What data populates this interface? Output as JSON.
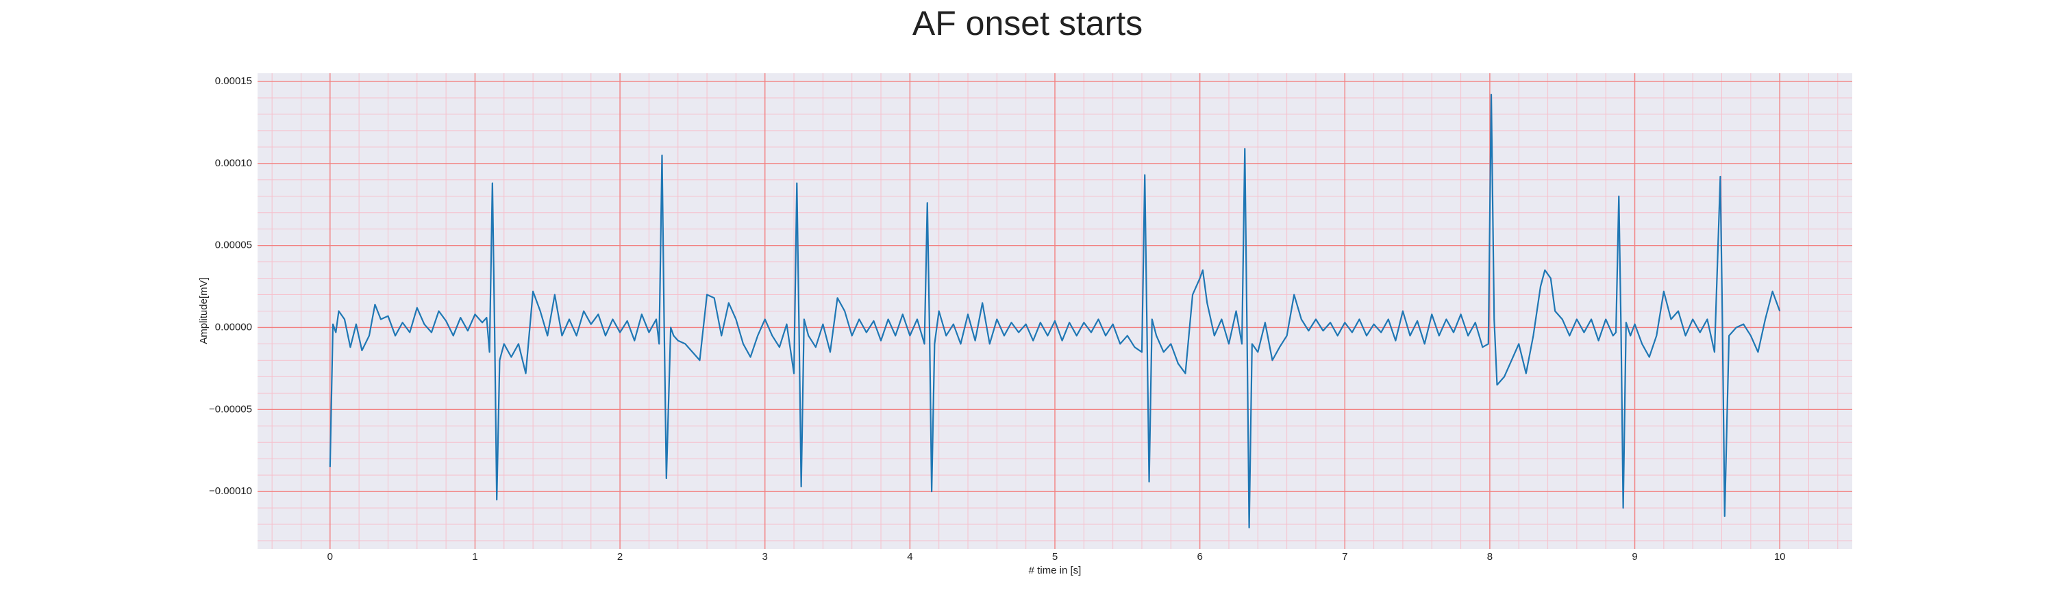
{
  "chart_data": {
    "type": "line",
    "title": "AF onset starts",
    "xlabel": "# time in [s]",
    "ylabel": "Amplitude[mV]",
    "color": "#1f77b4",
    "grid": true,
    "xlim": [
      -0.5,
      10.5
    ],
    "xticks": [
      0,
      1,
      2,
      3,
      4,
      5,
      6,
      7,
      8,
      9,
      10
    ],
    "ylim": [
      -0.000135,
      0.000155
    ],
    "yticks": [
      {
        "value": -0.0001,
        "label": "−0.00010"
      },
      {
        "value": -5e-05,
        "label": "−0.00005"
      },
      {
        "value": 0,
        "label": "0.00000"
      },
      {
        "value": 5e-05,
        "label": "0.00005"
      },
      {
        "value": 0.0001,
        "label": "0.00010"
      },
      {
        "value": 0.00015,
        "label": "0.00015"
      }
    ],
    "x": [
      0,
      0.02,
      0.04,
      0.06,
      0.1,
      0.14,
      0.18,
      0.22,
      0.27,
      0.31,
      0.35,
      0.4,
      0.45,
      0.5,
      0.55,
      0.6,
      0.65,
      0.7,
      0.75,
      0.8,
      0.85,
      0.9,
      0.95,
      1.0,
      1.05,
      1.08,
      1.1,
      1.12,
      1.135,
      1.15,
      1.17,
      1.2,
      1.25,
      1.3,
      1.35,
      1.4,
      1.45,
      1.5,
      1.55,
      1.6,
      1.65,
      1.7,
      1.75,
      1.8,
      1.85,
      1.9,
      1.95,
      2.0,
      2.05,
      2.1,
      2.15,
      2.2,
      2.25,
      2.27,
      2.29,
      2.305,
      2.32,
      2.35,
      2.37,
      2.4,
      2.45,
      2.5,
      2.55,
      2.6,
      2.65,
      2.7,
      2.75,
      2.8,
      2.85,
      2.9,
      2.95,
      3.0,
      3.05,
      3.1,
      3.15,
      3.2,
      3.22,
      3.235,
      3.25,
      3.27,
      3.3,
      3.35,
      3.4,
      3.45,
      3.5,
      3.55,
      3.6,
      3.65,
      3.7,
      3.75,
      3.8,
      3.85,
      3.9,
      3.95,
      4.0,
      4.05,
      4.1,
      4.12,
      4.135,
      4.15,
      4.17,
      4.2,
      4.25,
      4.3,
      4.35,
      4.4,
      4.45,
      4.5,
      4.55,
      4.6,
      4.65,
      4.7,
      4.75,
      4.8,
      4.85,
      4.9,
      4.95,
      5.0,
      5.05,
      5.1,
      5.15,
      5.2,
      5.25,
      5.3,
      5.35,
      5.4,
      5.45,
      5.5,
      5.55,
      5.6,
      5.62,
      5.635,
      5.65,
      5.67,
      5.7,
      5.75,
      5.8,
      5.85,
      5.9,
      5.95,
      6.0,
      6.02,
      6.05,
      6.1,
      6.15,
      6.2,
      6.25,
      6.29,
      6.31,
      6.325,
      6.34,
      6.36,
      6.4,
      6.45,
      6.5,
      6.55,
      6.6,
      6.65,
      6.7,
      6.75,
      6.8,
      6.85,
      6.9,
      6.95,
      7.0,
      7.05,
      7.1,
      7.15,
      7.2,
      7.25,
      7.3,
      7.35,
      7.4,
      7.45,
      7.5,
      7.55,
      7.6,
      7.65,
      7.7,
      7.75,
      7.8,
      7.85,
      7.9,
      7.95,
      7.99,
      8.01,
      8.03,
      8.05,
      8.1,
      8.15,
      8.2,
      8.25,
      8.3,
      8.35,
      8.38,
      8.42,
      8.45,
      8.5,
      8.55,
      8.6,
      8.65,
      8.7,
      8.75,
      8.8,
      8.85,
      8.87,
      8.89,
      8.905,
      8.92,
      8.94,
      8.97,
      9.0,
      9.05,
      9.1,
      9.15,
      9.2,
      9.25,
      9.3,
      9.35,
      9.4,
      9.45,
      9.5,
      9.55,
      9.59,
      9.605,
      9.62,
      9.65,
      9.7,
      9.75,
      9.8,
      9.85,
      9.9,
      9.95,
      10.0
    ],
    "values": [
      -8.5e-05,
      2e-06,
      -3e-06,
      1e-05,
      5e-06,
      -1.2e-05,
      2e-06,
      -1.4e-05,
      -5e-06,
      1.4e-05,
      5e-06,
      7e-06,
      -5e-06,
      3e-06,
      -3e-06,
      1.2e-05,
      2e-06,
      -3e-06,
      1e-05,
      4e-06,
      -5e-06,
      6e-06,
      -2e-06,
      8e-06,
      3e-06,
      6e-06,
      -1.5e-05,
      8.8e-05,
      0,
      -0.000105,
      -2e-05,
      -1e-05,
      -1.8e-05,
      -1e-05,
      -2.8e-05,
      2.2e-05,
      1e-05,
      -5e-06,
      2e-05,
      -5e-06,
      5e-06,
      -5e-06,
      1e-05,
      2e-06,
      8e-06,
      -5e-06,
      5e-06,
      -3e-06,
      4e-06,
      -8e-06,
      8e-06,
      -3e-06,
      5e-06,
      -1e-05,
      0.000105,
      0,
      -9.2e-05,
      0,
      -5e-06,
      -8e-06,
      -1e-05,
      -1.5e-05,
      -2e-05,
      2e-05,
      1.8e-05,
      -5e-06,
      1.5e-05,
      5e-06,
      -1e-05,
      -1.8e-05,
      -5e-06,
      5e-06,
      -5e-06,
      -1.2e-05,
      2e-06,
      -2.8e-05,
      8.8e-05,
      0,
      -9.7e-05,
      5e-06,
      -5e-06,
      -1.2e-05,
      2e-06,
      -1.5e-05,
      1.8e-05,
      1e-05,
      -5e-06,
      5e-06,
      -3e-06,
      4e-06,
      -8e-06,
      5e-06,
      -5e-06,
      8e-06,
      -5e-06,
      5e-06,
      -1e-05,
      7.6e-05,
      0,
      -0.0001,
      -1e-05,
      1e-05,
      -5e-06,
      2e-06,
      -1e-05,
      8e-06,
      -8e-06,
      1.5e-05,
      -1e-05,
      5e-06,
      -5e-06,
      3e-06,
      -3e-06,
      2e-06,
      -8e-06,
      3e-06,
      -5e-06,
      4e-06,
      -8e-06,
      3e-06,
      -5e-06,
      3e-06,
      -3e-06,
      5e-06,
      -5e-06,
      2e-06,
      -1e-05,
      -5e-06,
      -1.2e-05,
      -1.5e-05,
      9.3e-05,
      0,
      -9.4e-05,
      5e-06,
      -5e-06,
      -1.5e-05,
      -1e-05,
      -2.2e-05,
      -2.8e-05,
      2e-05,
      3e-05,
      3.5e-05,
      1.5e-05,
      -5e-06,
      5e-06,
      -1e-05,
      1e-05,
      -1e-05,
      0.000109,
      0,
      -0.000122,
      -1e-05,
      -1.5e-05,
      3e-06,
      -2e-05,
      -1.2e-05,
      -5e-06,
      2e-05,
      5e-06,
      -2e-06,
      5e-06,
      -2e-06,
      3e-06,
      -5e-06,
      3e-06,
      -3e-06,
      5e-06,
      -5e-06,
      2e-06,
      -3e-06,
      5e-06,
      -8e-06,
      1e-05,
      -5e-06,
      4e-06,
      -1e-05,
      8e-06,
      -5e-06,
      5e-06,
      -3e-06,
      8e-06,
      -5e-06,
      3e-06,
      -1.2e-05,
      -1e-05,
      0.000142,
      5e-06,
      -3.5e-05,
      -3e-05,
      -2e-05,
      -1e-05,
      -2.8e-05,
      -5e-06,
      2.5e-05,
      3.5e-05,
      3e-05,
      1e-05,
      5e-06,
      -5e-06,
      5e-06,
      -3e-06,
      5e-06,
      -8e-06,
      5e-06,
      -5e-06,
      -3e-06,
      8e-05,
      0,
      -0.00011,
      3e-06,
      -5e-06,
      2e-06,
      -1e-05,
      -1.8e-05,
      -5e-06,
      2.2e-05,
      5e-06,
      1e-05,
      -5e-06,
      5e-06,
      -3e-06,
      5e-06,
      -1.5e-05,
      9.2e-05,
      0,
      -0.000115,
      -5e-06,
      0,
      2e-06,
      -5e-06,
      -1.5e-05,
      5e-06,
      2.2e-05,
      1e-05
    ]
  }
}
